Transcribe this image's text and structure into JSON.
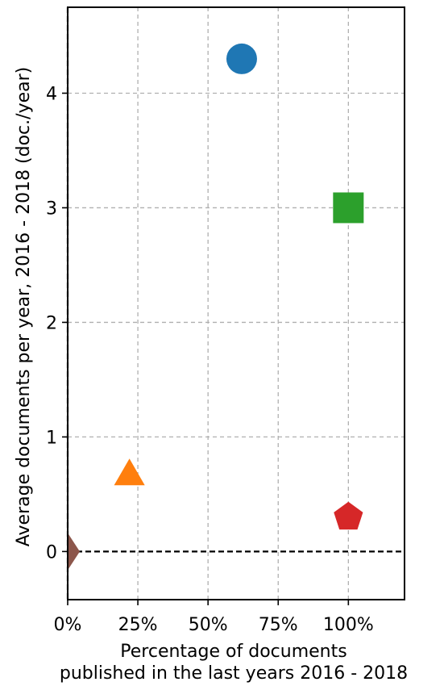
{
  "chart_data": {
    "type": "scatter",
    "title": "",
    "xlabel_lines": [
      "Percentage of documents",
      "published in the last years 2016 - 2018"
    ],
    "ylabel": "Average documents per year, 2016 - 2018 (doc./year)",
    "xlim": [
      0,
      1.2
    ],
    "ylim": [
      -0.42,
      4.75
    ],
    "x_ticks": [
      {
        "value": 0,
        "label": "0%"
      },
      {
        "value": 0.25,
        "label": "25%"
      },
      {
        "value": 0.5,
        "label": "50%"
      },
      {
        "value": 0.75,
        "label": "75%"
      },
      {
        "value": 1.0,
        "label": "100%"
      }
    ],
    "y_ticks": [
      {
        "value": 0,
        "label": "0"
      },
      {
        "value": 1,
        "label": "1"
      },
      {
        "value": 2,
        "label": "2"
      },
      {
        "value": 3,
        "label": "3"
      },
      {
        "value": 4,
        "label": "4"
      }
    ],
    "grid": true,
    "grid_style": "dashed",
    "reference_lines": [
      {
        "axis": "y",
        "value": 0,
        "style": "dashed",
        "color": "#000000"
      },
      {
        "axis": "x",
        "value": 0,
        "style": "dashed",
        "color": "#000000"
      }
    ],
    "points": [
      {
        "x": 0.62,
        "y": 4.3,
        "marker": "circle",
        "color": "#1f77b4"
      },
      {
        "x": 0.22,
        "y": 0.67,
        "marker": "triangle",
        "color": "#ff7f0e"
      },
      {
        "x": 1.0,
        "y": 3.0,
        "marker": "square",
        "color": "#2ca02c"
      },
      {
        "x": 1.0,
        "y": 0.3,
        "marker": "pentagon",
        "color": "#d62728"
      },
      {
        "x": 0.0,
        "y": 0.0,
        "marker": "diamond",
        "color": "#8c564b"
      }
    ],
    "colors": {
      "grid": "#b0b0b0",
      "axis": "#000000"
    }
  }
}
